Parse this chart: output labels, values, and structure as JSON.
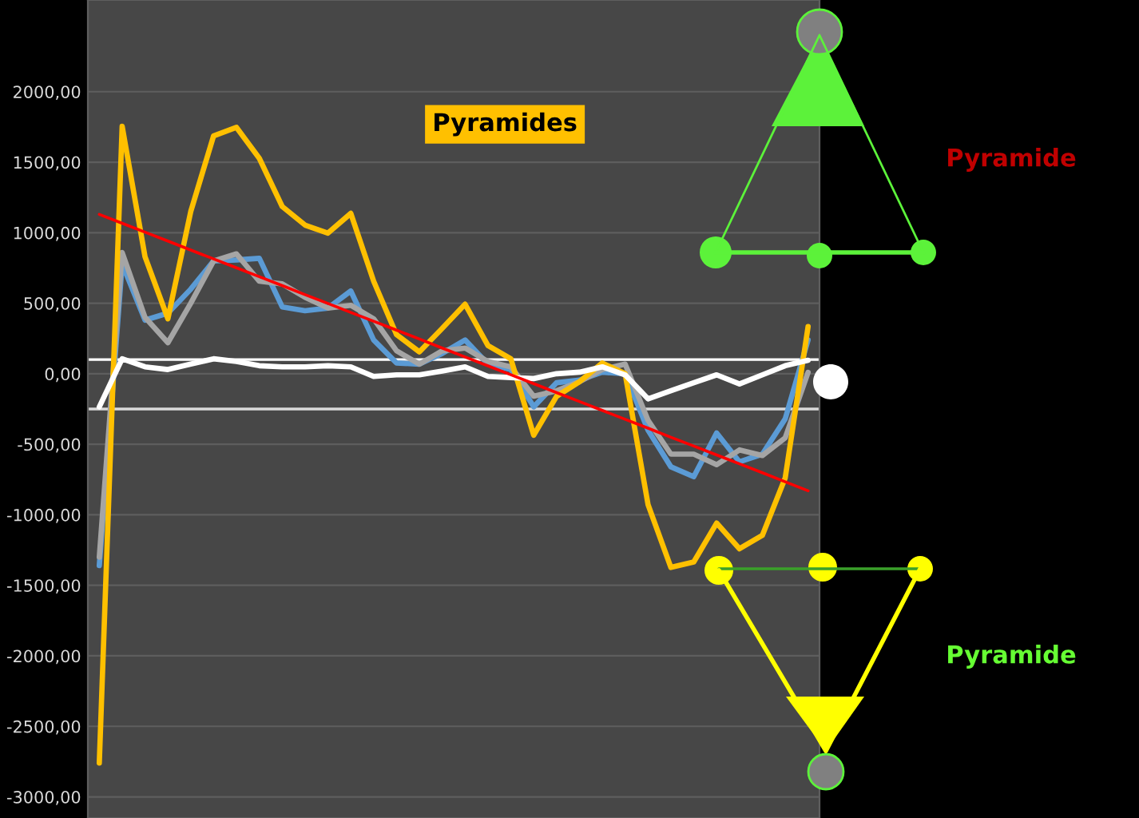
{
  "chart_data": {
    "type": "line",
    "title": "Pyramides",
    "categories": [
      null,
      null,
      null,
      null,
      null,
      null,
      null,
      null,
      null,
      null,
      null,
      null,
      null,
      null,
      null,
      null,
      null,
      null,
      null,
      null,
      null,
      null,
      null,
      null,
      null,
      null,
      null,
      null,
      null,
      null,
      null,
      null
    ],
    "series": [
      {
        "color": "#5b9bd5",
        "values": [
          -1360,
          780,
          380,
          430,
          600,
          800,
          807,
          818,
          474,
          447,
          466,
          587,
          239,
          76,
          68,
          144,
          239,
          68,
          30,
          -235,
          -64,
          -45,
          11,
          0,
          -400,
          -660,
          -730,
          -420,
          -625,
          -570,
          -320,
          240
        ]
      },
      {
        "color": "#a5a5a5",
        "values": [
          -1300,
          860,
          400,
          220,
          500,
          800,
          850,
          656,
          637,
          542,
          466,
          485,
          390,
          163,
          68,
          163,
          182,
          87,
          49,
          -159,
          -121,
          -57,
          30,
          68,
          -330,
          -570,
          -570,
          -645,
          -540,
          -580,
          -455,
          10
        ]
      },
      {
        "color": "#ffc000",
        "values": [
          -2760,
          1755,
          830,
          390,
          1150,
          1687,
          1747,
          1527,
          1186,
          1054,
          997,
          1137,
          656,
          277,
          155,
          322,
          493,
          200,
          106,
          -436,
          -160,
          -57,
          76,
          0,
          -927,
          -1373,
          -1335,
          -1059,
          -1241,
          -1146,
          -738,
          334
        ]
      },
      {
        "color": "#ffffff",
        "values": [
          -235,
          106,
          49,
          30,
          68,
          106,
          87,
          57,
          49,
          49,
          57,
          49,
          -19,
          -8,
          -8,
          19,
          49,
          -19,
          -27,
          -34,
          0,
          11,
          49,
          -8,
          -178,
          -121,
          -64,
          -8,
          -72,
          -8,
          57,
          95
        ]
      },
      {
        "type": "line",
        "color": "#ff0000",
        "values": [
          1130,
          1067,
          1004,
          941,
          877,
          814,
          751,
          688,
          625,
          561,
          498,
          435,
          372,
          309,
          246,
          182,
          119,
          56,
          -7,
          -70,
          -134,
          -197,
          -260,
          -323,
          -386,
          -450,
          -513,
          -576,
          -639,
          -702,
          -766,
          -830
        ]
      }
    ],
    "ylim": [
      -3150,
      2650
    ],
    "yticks": [
      {
        "value": -3000,
        "label": "-3000,00"
      },
      {
        "value": -2500,
        "label": "-2500,00"
      },
      {
        "value": -2000,
        "label": "-2000,00"
      },
      {
        "value": -1500,
        "label": "-1500,00"
      },
      {
        "value": -1000,
        "label": "-1000,00"
      },
      {
        "value": -500,
        "label": "-500,00"
      },
      {
        "value": 0,
        "label": "0,00"
      },
      {
        "value": 500,
        "label": "500,00"
      },
      {
        "value": 1000,
        "label": "1000,00"
      },
      {
        "value": 1500,
        "label": "1500,00"
      },
      {
        "value": 2000,
        "label": "2000,00"
      }
    ],
    "tick_labels": "y",
    "grid": "y",
    "ref_lines": [
      {
        "axis": "y",
        "value": 100,
        "color": "#ffffff"
      },
      {
        "axis": "y",
        "value": -250,
        "color": "#d9d9d9"
      }
    ],
    "annotations": [
      "Pyramide",
      "Pyramide"
    ]
  }
}
